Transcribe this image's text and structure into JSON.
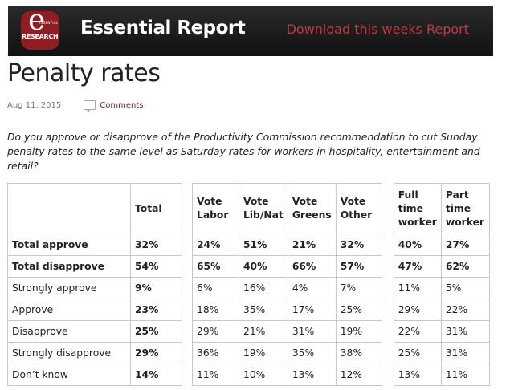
{
  "header": {
    "logo": {
      "letter": "e",
      "small_text": "ESSENTIAL",
      "text": "RESEARCH"
    },
    "site_title": "Essential Report",
    "download_link": "Download this weeks Report"
  },
  "article": {
    "title": "Penalty rates",
    "date": "Aug 11, 2015",
    "comments_label": "Comments",
    "question": "Do you approve or disapprove of the Productivity Commission recommendation to cut Sunday penalty rates to the same level as Saturday rates for workers in hospitality, entertainment and retail?"
  },
  "table": {
    "columns": [
      "Total",
      "Vote Labor",
      "Vote Lib/Nat",
      "Vote Greens",
      "Vote Other",
      "Full time worker",
      "Part time worker"
    ],
    "rows": [
      {
        "label": "Total approve",
        "values": [
          "32%",
          "24%",
          "51%",
          "21%",
          "32%",
          "40%",
          "27%"
        ]
      },
      {
        "label": "Total disapprove",
        "values": [
          "54%",
          "65%",
          "40%",
          "66%",
          "57%",
          "47%",
          "62%"
        ]
      },
      {
        "label": "Strongly approve",
        "values": [
          "9%",
          "6%",
          "16%",
          "4%",
          "7%",
          "11%",
          "5%"
        ]
      },
      {
        "label": "Approve",
        "values": [
          "23%",
          "18%",
          "35%",
          "17%",
          "25%",
          "29%",
          "22%"
        ]
      },
      {
        "label": "Disapprove",
        "values": [
          "25%",
          "29%",
          "21%",
          "31%",
          "19%",
          "22%",
          "31%"
        ]
      },
      {
        "label": "Strongly disapprove",
        "values": [
          "29%",
          "36%",
          "19%",
          "35%",
          "38%",
          "25%",
          "31%"
        ]
      },
      {
        "label": "Don’t know",
        "values": [
          "14%",
          "11%",
          "10%",
          "13%",
          "12%",
          "13%",
          "11%"
        ]
      }
    ]
  }
}
